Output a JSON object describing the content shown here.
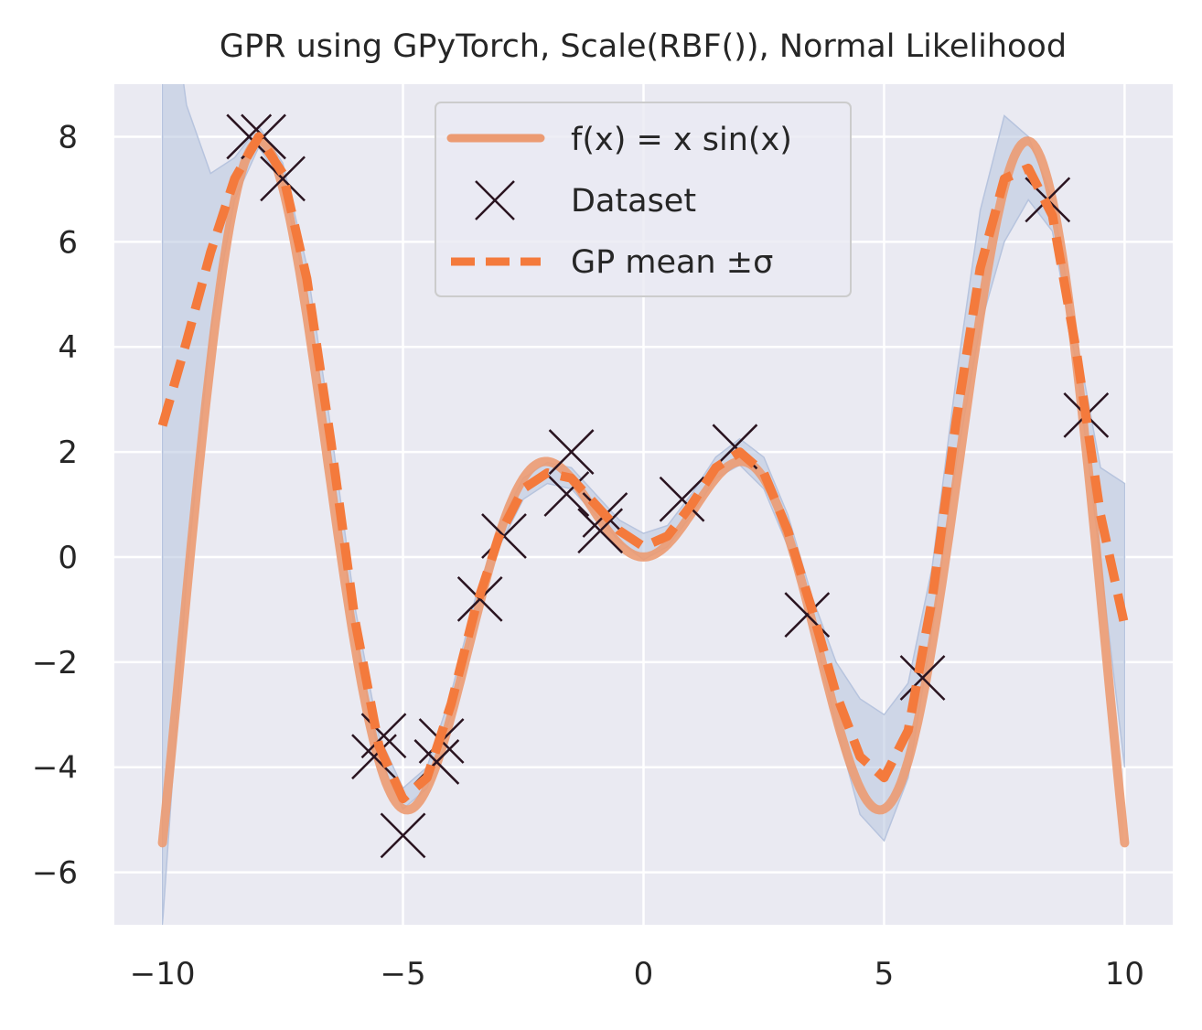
{
  "chart_data": {
    "type": "line",
    "title": "GPR using GPyTorch, Scale(RBF()), Normal Likelihood",
    "xlim": [
      -11,
      11
    ],
    "ylim": [
      -7,
      9
    ],
    "xticks": [
      -10,
      -5,
      0,
      5,
      10
    ],
    "xtick_labels": [
      "−10",
      "−5",
      "0",
      "5",
      "10"
    ],
    "yticks": [
      -6,
      -4,
      -2,
      0,
      2,
      4,
      6,
      8
    ],
    "ytick_labels": [
      "−6",
      "−4",
      "−2",
      "0",
      "2",
      "4",
      "6",
      "8"
    ],
    "grid": true,
    "legend_placement": "upper-center",
    "colors": {
      "background": "#eaeaf2",
      "grid": "#ffffff",
      "true_function": "#ec9b72",
      "gp_mean": "#f47a3c",
      "band": "#b7c4de",
      "markers": "#2a1420"
    },
    "series": [
      {
        "name": "f(x) = x sin(x)",
        "kind": "function",
        "function": "x*sin(x)",
        "x_range": [
          -10,
          10
        ]
      },
      {
        "name": "Dataset",
        "kind": "scatter",
        "marker": "x",
        "points": [
          [
            -8.2,
            8.0
          ],
          [
            -7.9,
            8.0
          ],
          [
            -7.5,
            7.2
          ],
          [
            -5.6,
            -3.8
          ],
          [
            -5.4,
            -3.4
          ],
          [
            -5.0,
            -5.3
          ],
          [
            -4.3,
            -3.9
          ],
          [
            -4.2,
            -3.5
          ],
          [
            -3.4,
            -0.8
          ],
          [
            -2.9,
            0.4
          ],
          [
            -1.6,
            1.2
          ],
          [
            -1.5,
            2.0
          ],
          [
            -0.9,
            0.5
          ],
          [
            -0.8,
            0.8
          ],
          [
            0.8,
            1.1
          ],
          [
            1.9,
            2.1
          ],
          [
            3.4,
            -1.1
          ],
          [
            5.8,
            -2.3
          ],
          [
            8.4,
            6.8
          ],
          [
            9.2,
            2.7
          ]
        ]
      },
      {
        "name": "GP mean ±σ",
        "kind": "mean_band",
        "points": [
          [
            -10.0,
            2.5
          ],
          [
            -9.5,
            4.1
          ],
          [
            -9.0,
            5.8
          ],
          [
            -8.5,
            7.2
          ],
          [
            -8.0,
            8.0
          ],
          [
            -7.5,
            7.3
          ],
          [
            -7.0,
            5.3
          ],
          [
            -6.5,
            2.2
          ],
          [
            -6.0,
            -1.2
          ],
          [
            -5.5,
            -3.6
          ],
          [
            -5.0,
            -4.6
          ],
          [
            -4.5,
            -4.2
          ],
          [
            -4.0,
            -2.8
          ],
          [
            -3.5,
            -1.0
          ],
          [
            -3.0,
            0.4
          ],
          [
            -2.5,
            1.3
          ],
          [
            -2.0,
            1.6
          ],
          [
            -1.5,
            1.5
          ],
          [
            -1.0,
            1.0
          ],
          [
            -0.5,
            0.5
          ],
          [
            0.0,
            0.2
          ],
          [
            0.5,
            0.4
          ],
          [
            1.0,
            1.0
          ],
          [
            1.5,
            1.7
          ],
          [
            2.0,
            2.0
          ],
          [
            2.5,
            1.6
          ],
          [
            3.0,
            0.5
          ],
          [
            3.5,
            -1.0
          ],
          [
            4.0,
            -2.6
          ],
          [
            4.5,
            -3.8
          ],
          [
            5.0,
            -4.2
          ],
          [
            5.5,
            -3.3
          ],
          [
            6.0,
            -0.8
          ],
          [
            6.5,
            2.6
          ],
          [
            7.0,
            5.5
          ],
          [
            7.5,
            7.2
          ],
          [
            8.0,
            7.4
          ],
          [
            8.5,
            6.5
          ],
          [
            9.0,
            3.9
          ],
          [
            9.5,
            0.8
          ],
          [
            10.0,
            -1.3
          ]
        ],
        "sigma": [
          [
            -10.0,
            9.5
          ],
          [
            -9.5,
            4.5
          ],
          [
            -9.0,
            1.5
          ],
          [
            -8.5,
            0.4
          ],
          [
            -8.0,
            0.2
          ],
          [
            -7.5,
            0.2
          ],
          [
            -7.0,
            0.25
          ],
          [
            -6.5,
            0.25
          ],
          [
            -6.0,
            0.25
          ],
          [
            -5.5,
            0.2
          ],
          [
            -5.0,
            0.2
          ],
          [
            -4.5,
            0.2
          ],
          [
            -4.0,
            0.2
          ],
          [
            -3.5,
            0.2
          ],
          [
            -3.0,
            0.2
          ],
          [
            -2.5,
            0.2
          ],
          [
            -2.0,
            0.2
          ],
          [
            -1.5,
            0.2
          ],
          [
            -1.0,
            0.2
          ],
          [
            -0.5,
            0.2
          ],
          [
            0.0,
            0.25
          ],
          [
            0.5,
            0.2
          ],
          [
            1.0,
            0.2
          ],
          [
            1.5,
            0.2
          ],
          [
            2.0,
            0.25
          ],
          [
            2.5,
            0.3
          ],
          [
            3.0,
            0.3
          ],
          [
            3.5,
            0.25
          ],
          [
            4.0,
            0.6
          ],
          [
            4.5,
            1.1
          ],
          [
            5.0,
            1.2
          ],
          [
            5.5,
            0.9
          ],
          [
            6.0,
            0.6
          ],
          [
            6.5,
            0.8
          ],
          [
            7.0,
            1.1
          ],
          [
            7.5,
            1.2
          ],
          [
            8.0,
            0.6
          ],
          [
            8.5,
            0.3
          ],
          [
            9.0,
            0.25
          ],
          [
            9.5,
            0.9
          ],
          [
            10.0,
            2.7
          ]
        ]
      }
    ]
  }
}
